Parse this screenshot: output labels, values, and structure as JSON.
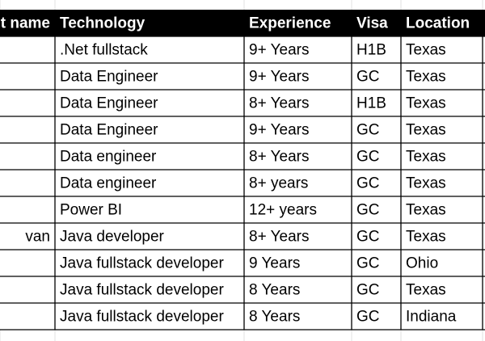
{
  "table": {
    "headers": [
      "t name",
      "Technology",
      "Experience",
      "Visa",
      "Location"
    ],
    "rows": [
      [
        null,
        ".Net fullstack",
        "9+ Years",
        "H1B",
        "Texas"
      ],
      [
        null,
        "Data Engineer",
        "9+ Years",
        "GC",
        "Texas"
      ],
      [
        null,
        "Data Engineer",
        "8+ Years",
        "H1B",
        "Texas"
      ],
      [
        null,
        "Data Engineer",
        "9+ Years",
        "GC",
        "Texas"
      ],
      [
        null,
        "Data engineer",
        "8+ Years",
        "GC",
        "Texas"
      ],
      [
        null,
        "Data engineer",
        "8+ years",
        "GC",
        "Texas"
      ],
      [
        null,
        "Power BI",
        "12+ years",
        "GC",
        "Texas"
      ],
      [
        "van",
        "Java developer",
        "8+ Years",
        "GC",
        "Texas"
      ],
      [
        null,
        "Java fullstack developer",
        "9 Years",
        "GC",
        "Ohio"
      ],
      [
        null,
        "Java fullstack developer",
        "8 Years",
        "GC",
        "Texas"
      ],
      [
        null,
        "Java fullstack developer",
        "8 Years",
        "GC",
        "Indiana"
      ]
    ]
  }
}
